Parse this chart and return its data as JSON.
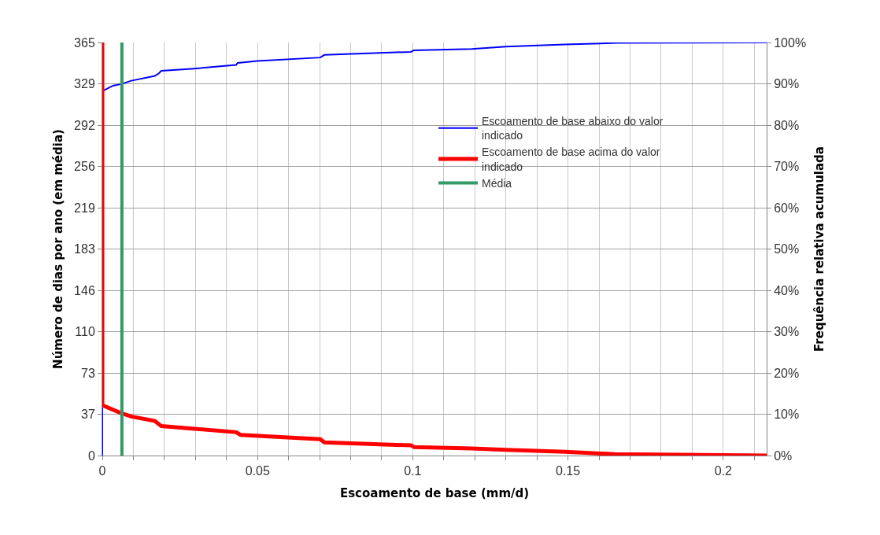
{
  "chart_data": {
    "type": "line",
    "xlabel": "Escoamento de base (mm/d)",
    "ylabel": "Número de dias por ano (em média)",
    "y2label": "Frequência relativa acumulada",
    "xlim": [
      0,
      0.214
    ],
    "xticks": [
      0,
      {
        "value": 0.01,
        "label": null
      },
      {
        "value": 0.02,
        "label": null
      },
      {
        "value": 0.03,
        "label": null
      },
      {
        "value": 0.04,
        "label": null
      },
      0.05,
      {
        "value": 0.06,
        "label": null
      },
      {
        "value": 0.07,
        "label": null
      },
      {
        "value": 0.08,
        "label": null
      },
      {
        "value": 0.09,
        "label": null
      },
      0.1,
      {
        "value": 0.11,
        "label": null
      },
      {
        "value": 0.12,
        "label": null
      },
      {
        "value": 0.13,
        "label": null
      },
      {
        "value": 0.14,
        "label": null
      },
      0.15,
      {
        "value": 0.16,
        "label": null
      },
      {
        "value": 0.17,
        "label": null
      },
      {
        "value": 0.18,
        "label": null
      },
      {
        "value": 0.19,
        "label": null
      },
      0.2,
      {
        "value": 0.21,
        "label": null
      }
    ],
    "ylim": [
      0,
      365
    ],
    "yticks": [
      0,
      {
        "value": 36.5,
        "label": "37"
      },
      {
        "value": 73,
        "label": "73"
      },
      {
        "value": 109.5,
        "label": "110"
      },
      {
        "value": 146,
        "label": "146"
      },
      {
        "value": 182.5,
        "label": "183"
      },
      {
        "value": 219,
        "label": "219"
      },
      {
        "value": 255.5,
        "label": "256"
      },
      {
        "value": 292,
        "label": "292"
      },
      {
        "value": 328.5,
        "label": "329"
      },
      365
    ],
    "y2lim": [
      0,
      100
    ],
    "y2ticks": [
      {
        "value": 0,
        "label": "0%"
      },
      {
        "value": 10,
        "label": "10%"
      },
      {
        "value": 20,
        "label": "20%"
      },
      {
        "value": 30,
        "label": "30%"
      },
      {
        "value": 40,
        "label": "40%"
      },
      {
        "value": 50,
        "label": "50%"
      },
      {
        "value": 60,
        "label": "60%"
      },
      {
        "value": 70,
        "label": "70%"
      },
      {
        "value": 80,
        "label": "80%"
      },
      {
        "value": 90,
        "label": "90%"
      },
      {
        "value": 100,
        "label": "100%"
      }
    ],
    "grid": true,
    "legend": "top right",
    "marker": "none",
    "line_style": "solid",
    "series": [
      {
        "name": "Escoamento de base abaixo do valor indicado",
        "color": "#0000ff",
        "x": [
          0,
          0,
          0.0034,
          0.0063,
          0.0093,
          0.0169,
          0.0182,
          0.019,
          0.0296,
          0.0431,
          0.0436,
          0.0499,
          0.0702,
          0.0715,
          0.0994,
          0.1003,
          0.119,
          0.13,
          0.149,
          0.166,
          0.214
        ],
        "values": [
          0,
          322,
          326.8,
          328.4,
          331.2,
          335.4,
          337.7,
          340,
          341.9,
          345.1,
          347,
          348.6,
          351.7,
          354,
          356.7,
          358.1,
          359.3,
          361.4,
          363.2,
          364.6,
          365
        ]
      },
      {
        "name": "Escoamento de base acima do valor indicado",
        "color": "#ff0000",
        "x": [
          0,
          0,
          0.0059,
          0.0093,
          0.0169,
          0.019,
          0.0431,
          0.0445,
          0.0702,
          0.0715,
          0.0994,
          0.1005,
          0.119,
          0.13,
          0.149,
          0.165,
          0.214
        ],
        "values": [
          365,
          44.5,
          37.6,
          34.5,
          30.6,
          26,
          20.6,
          18.3,
          14.4,
          11.6,
          9,
          7.4,
          6.3,
          5,
          3.3,
          1.2,
          0
        ]
      },
      {
        "name": "Média",
        "color": "#339966",
        "x": [
          0.0063,
          0.0063
        ],
        "values": [
          0,
          365
        ]
      }
    ]
  }
}
